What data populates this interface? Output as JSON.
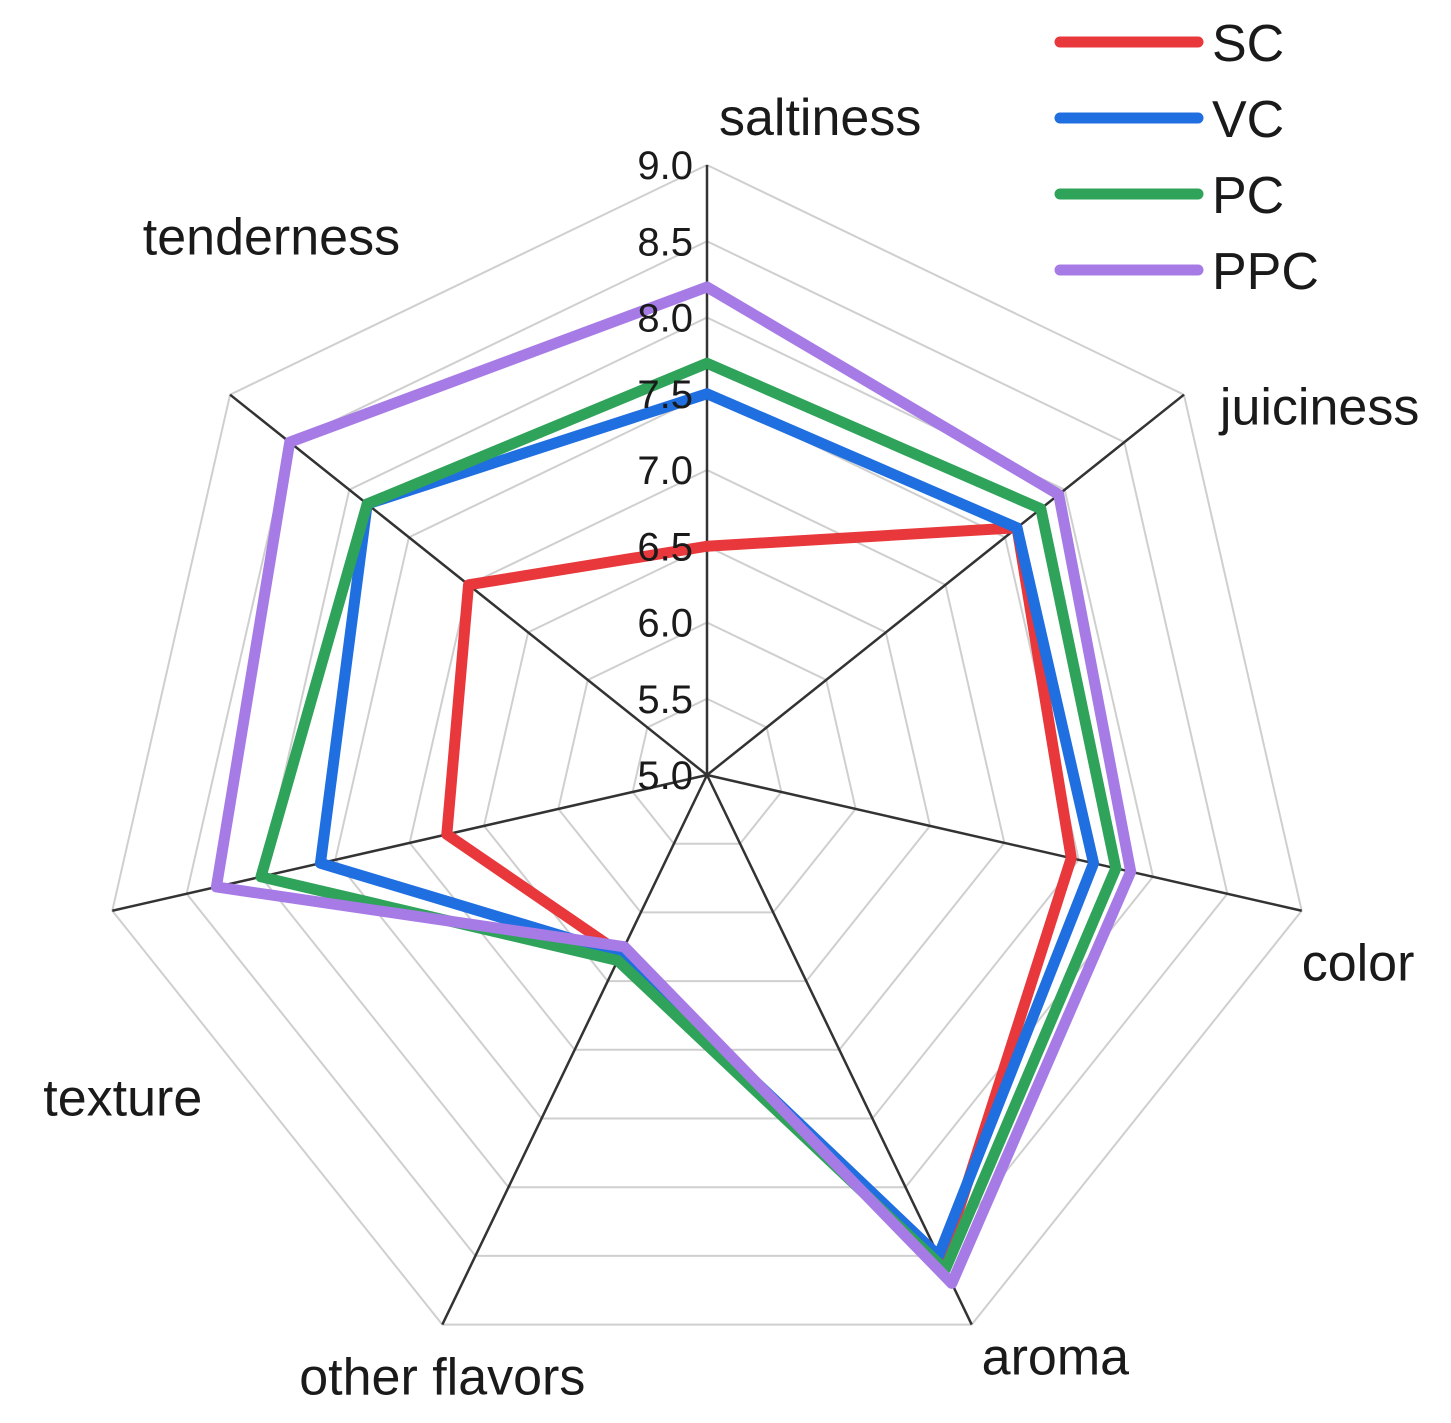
{
  "chart_data": {
    "type": "radar",
    "axes": [
      "saltiness",
      "juiciness",
      "color",
      "aroma",
      "other flavors",
      "texture",
      "tenderness"
    ],
    "range": [
      5.0,
      9.0
    ],
    "ticks": [
      "5.0",
      "5.5",
      "6.0",
      "6.5",
      "7.0",
      "7.5",
      "8.0",
      "8.5",
      "9.0"
    ],
    "grid": true,
    "legend_position": "top-right",
    "series": [
      {
        "name": "SC",
        "color": "#e8383b",
        "values": [
          6.5,
          7.6,
          7.45,
          8.55,
          6.3,
          6.75,
          7.0
        ]
      },
      {
        "name": "VC",
        "color": "#1f6fe0",
        "values": [
          7.5,
          7.6,
          7.6,
          8.5,
          6.3,
          7.6,
          7.85
        ]
      },
      {
        "name": "PC",
        "color": "#2fa35a",
        "values": [
          7.7,
          7.8,
          7.75,
          8.6,
          6.35,
          8.0,
          7.85
        ]
      },
      {
        "name": "PPC",
        "color": "#a77be6",
        "values": [
          8.2,
          7.95,
          7.85,
          8.7,
          6.25,
          8.3,
          8.5
        ]
      }
    ]
  }
}
